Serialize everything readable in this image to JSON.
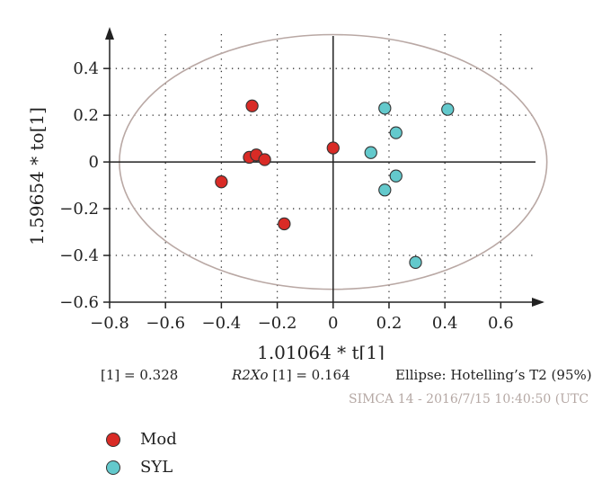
{
  "chart_data": {
    "type": "scatter",
    "xlabel": "1.01064 * t[1]",
    "ylabel": "1.59654 * to[1]",
    "xlim": [
      -0.8,
      0.75
    ],
    "ylim": [
      -0.6,
      0.57
    ],
    "x_ticks": [
      -0.8,
      -0.6,
      -0.4,
      -0.2,
      0,
      0.2,
      0.4,
      0.6
    ],
    "y_ticks": [
      -0.6,
      -0.4,
      -0.2,
      0,
      0.2,
      0.4
    ],
    "x_tick_labels": [
      "−0.8",
      "−0.6",
      "−0.4",
      "−0.2",
      "0",
      "0.2",
      "0.4",
      "0.6"
    ],
    "y_tick_labels": [
      "−0.6",
      "−0.4",
      "−0.2",
      "0",
      "0.2",
      "0.4"
    ],
    "grid": "dotted",
    "legend_position": "bottom-left",
    "ellipse": {
      "label": "Ellipse: Hotelling’s T2 (95%)",
      "rx": 0.765,
      "ry": 0.545,
      "color": "#b9a8a4"
    },
    "series": [
      {
        "name": "Mod",
        "color": "#d92b26",
        "points": [
          [
            -0.29,
            0.24
          ],
          [
            -0.3,
            0.02
          ],
          [
            -0.275,
            0.03
          ],
          [
            -0.245,
            0.01
          ],
          [
            -0.4,
            -0.085
          ],
          [
            -0.175,
            -0.265
          ],
          [
            0.0,
            0.06
          ]
        ]
      },
      {
        "name": "SYL",
        "color": "#63c9cc",
        "points": [
          [
            0.185,
            0.23
          ],
          [
            0.41,
            0.225
          ],
          [
            0.225,
            0.125
          ],
          [
            0.135,
            0.04
          ],
          [
            0.225,
            -0.06
          ],
          [
            0.185,
            -0.12
          ],
          [
            0.295,
            -0.43
          ]
        ]
      }
    ]
  },
  "stats": {
    "r2x": "[1] = 0.328",
    "r2xo_label": "R2Xo",
    "r2xo_value": "[1] = 0.164",
    "ellipse": "Ellipse: Hotelling’s T2 (95%)"
  },
  "footer": "SIMCA 14 - 2016/7/15 10:40:50 (UTC",
  "legend": [
    {
      "label": "Mod",
      "color": "#d92b26"
    },
    {
      "label": "SYL",
      "color": "#63c9cc"
    }
  ]
}
